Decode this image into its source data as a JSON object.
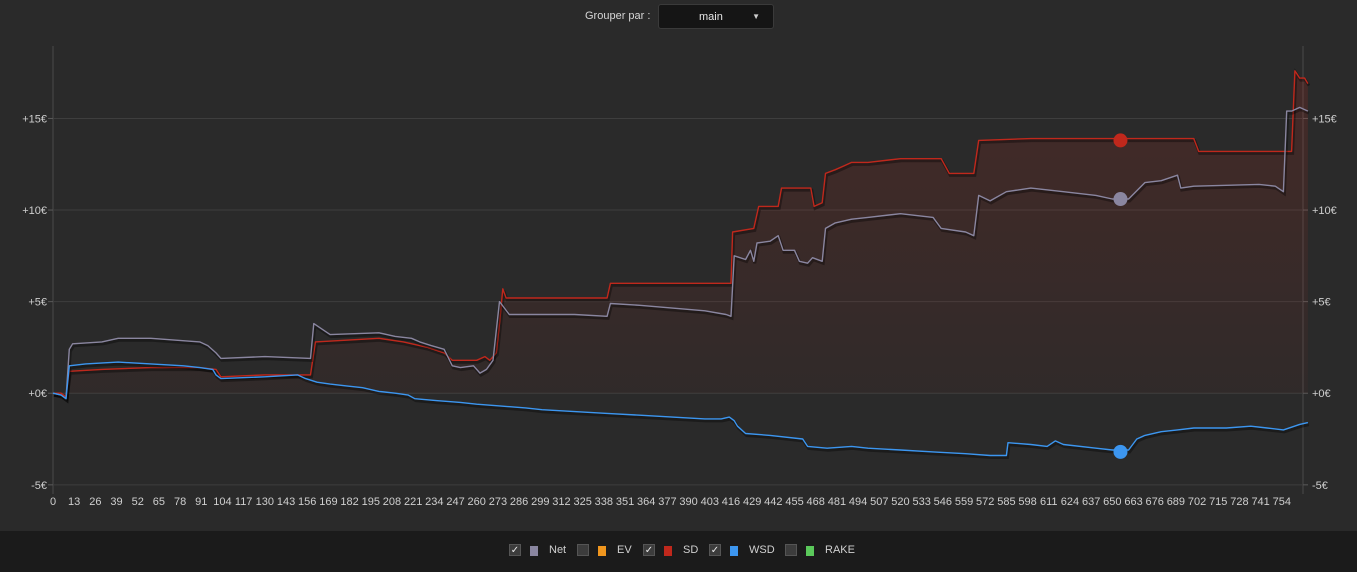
{
  "toolbar": {
    "group_label": "Grouper par :",
    "group_value": "main"
  },
  "colors": {
    "net": "#8a86a0",
    "ev": "#f0961e",
    "sd": "#c0281c",
    "wsd": "#3c96f0",
    "rake": "#5ac85a"
  },
  "legend": [
    {
      "key": "net",
      "label": "Net",
      "checked": true,
      "color": "#8a86a0"
    },
    {
      "key": "ev",
      "label": "EV",
      "checked": false,
      "color": "#f0961e"
    },
    {
      "key": "sd",
      "label": "SD",
      "checked": true,
      "color": "#c0281c"
    },
    {
      "key": "wsd",
      "label": "WSD",
      "checked": true,
      "color": "#3c96f0"
    },
    {
      "key": "rake",
      "label": "RAKE",
      "checked": false,
      "color": "#5ac85a"
    }
  ],
  "chart_data": {
    "type": "line",
    "title": "",
    "xlabel": "",
    "ylabel": "",
    "xlim": [
      0,
      767
    ],
    "ylim": [
      -5.5,
      19.5
    ],
    "grid": true,
    "x_ticks": [
      "0",
      "13",
      "26",
      "39",
      "52",
      "65",
      "78",
      "91",
      "104",
      "117",
      "130",
      "143",
      "156",
      "169",
      "182",
      "195",
      "208",
      "221",
      "234",
      "247",
      "260",
      "273",
      "286",
      "299",
      "312",
      "325",
      "338",
      "351",
      "364",
      "377",
      "390",
      "403",
      "416",
      "429",
      "442",
      "455",
      "468",
      "481",
      "494",
      "507",
      "520",
      "533",
      "546",
      "559",
      "572",
      "585",
      "598",
      "611",
      "624",
      "637",
      "650",
      "663",
      "676",
      "689",
      "702",
      "715",
      "728",
      "741",
      "754"
    ],
    "y_ticks": [
      {
        "value": -5,
        "label": "-5€"
      },
      {
        "value": 0,
        "label": "+0€"
      },
      {
        "value": 5,
        "label": "+5€"
      },
      {
        "value": 10,
        "label": "+10€"
      },
      {
        "value": 15,
        "label": "+15€"
      }
    ],
    "series": [
      {
        "key": "sd",
        "name": "SD",
        "color": "#c0281c",
        "marker": {
          "x": 655,
          "y": 13.8
        },
        "points": [
          [
            0,
            0
          ],
          [
            5,
            0
          ],
          [
            8,
            -0.2
          ],
          [
            10,
            1.2
          ],
          [
            30,
            1.3
          ],
          [
            60,
            1.4
          ],
          [
            90,
            1.4
          ],
          [
            100,
            1.3
          ],
          [
            103,
            0.9
          ],
          [
            130,
            1.0
          ],
          [
            158,
            1.0
          ],
          [
            161,
            2.8
          ],
          [
            200,
            3.0
          ],
          [
            215,
            2.8
          ],
          [
            230,
            2.5
          ],
          [
            240,
            2.2
          ],
          [
            245,
            1.8
          ],
          [
            260,
            1.8
          ],
          [
            265,
            2.0
          ],
          [
            268,
            1.8
          ],
          [
            272,
            2.2
          ],
          [
            274,
            3.8
          ],
          [
            276,
            5.7
          ],
          [
            278,
            5.2
          ],
          [
            300,
            5.2
          ],
          [
            340,
            5.2
          ],
          [
            342,
            6.0
          ],
          [
            390,
            6.0
          ],
          [
            416,
            6.0
          ],
          [
            417,
            8.8
          ],
          [
            430,
            9.0
          ],
          [
            433,
            10.2
          ],
          [
            445,
            10.2
          ],
          [
            447,
            11.2
          ],
          [
            465,
            11.2
          ],
          [
            467,
            10.2
          ],
          [
            472,
            10.4
          ],
          [
            474,
            12.0
          ],
          [
            480,
            12.2
          ],
          [
            485,
            12.4
          ],
          [
            490,
            12.6
          ],
          [
            500,
            12.6
          ],
          [
            520,
            12.8
          ],
          [
            545,
            12.8
          ],
          [
            550,
            12.0
          ],
          [
            565,
            12.0
          ],
          [
            568,
            13.8
          ],
          [
            600,
            13.9
          ],
          [
            640,
            13.9
          ],
          [
            700,
            13.9
          ],
          [
            703,
            13.2
          ],
          [
            760,
            13.2
          ],
          [
            762,
            17.6
          ],
          [
            765,
            17.2
          ],
          [
            768,
            17.2
          ],
          [
            770,
            16.9
          ]
        ]
      },
      {
        "key": "net",
        "name": "Net",
        "color": "#8a86a0",
        "marker": {
          "x": 655,
          "y": 10.6
        },
        "points": [
          [
            0,
            0
          ],
          [
            5,
            -0.1
          ],
          [
            8,
            -0.3
          ],
          [
            10,
            2.4
          ],
          [
            12,
            2.7
          ],
          [
            30,
            2.8
          ],
          [
            40,
            3.0
          ],
          [
            60,
            3.0
          ],
          [
            90,
            2.8
          ],
          [
            95,
            2.6
          ],
          [
            100,
            2.2
          ],
          [
            103,
            1.9
          ],
          [
            130,
            2.0
          ],
          [
            158,
            1.9
          ],
          [
            160,
            3.8
          ],
          [
            165,
            3.5
          ],
          [
            170,
            3.2
          ],
          [
            200,
            3.3
          ],
          [
            210,
            3.1
          ],
          [
            220,
            3.0
          ],
          [
            225,
            2.8
          ],
          [
            232,
            2.6
          ],
          [
            240,
            2.4
          ],
          [
            245,
            1.5
          ],
          [
            250,
            1.4
          ],
          [
            258,
            1.5
          ],
          [
            262,
            1.1
          ],
          [
            266,
            1.3
          ],
          [
            270,
            1.8
          ],
          [
            274,
            5.0
          ],
          [
            280,
            4.3
          ],
          [
            300,
            4.3
          ],
          [
            320,
            4.3
          ],
          [
            340,
            4.2
          ],
          [
            342,
            4.9
          ],
          [
            360,
            4.8
          ],
          [
            400,
            4.5
          ],
          [
            413,
            4.3
          ],
          [
            416,
            4.2
          ],
          [
            418,
            7.5
          ],
          [
            425,
            7.3
          ],
          [
            428,
            7.8
          ],
          [
            430,
            7.2
          ],
          [
            432,
            8.2
          ],
          [
            440,
            8.3
          ],
          [
            445,
            8.6
          ],
          [
            448,
            7.8
          ],
          [
            455,
            7.8
          ],
          [
            458,
            7.2
          ],
          [
            463,
            7.1
          ],
          [
            466,
            7.4
          ],
          [
            472,
            7.2
          ],
          [
            474,
            9.0
          ],
          [
            480,
            9.3
          ],
          [
            490,
            9.5
          ],
          [
            500,
            9.6
          ],
          [
            520,
            9.8
          ],
          [
            540,
            9.6
          ],
          [
            545,
            9.0
          ],
          [
            560,
            8.8
          ],
          [
            565,
            8.6
          ],
          [
            568,
            10.8
          ],
          [
            575,
            10.5
          ],
          [
            585,
            11.0
          ],
          [
            600,
            11.2
          ],
          [
            620,
            11.0
          ],
          [
            640,
            10.8
          ],
          [
            650,
            10.6
          ],
          [
            660,
            10.6
          ],
          [
            670,
            11.5
          ],
          [
            680,
            11.6
          ],
          [
            690,
            11.9
          ],
          [
            692,
            11.2
          ],
          [
            700,
            11.3
          ],
          [
            740,
            11.4
          ],
          [
            750,
            11.3
          ],
          [
            755,
            11.0
          ],
          [
            757,
            15.4
          ],
          [
            760,
            15.4
          ],
          [
            765,
            15.6
          ],
          [
            770,
            15.4
          ]
        ]
      },
      {
        "key": "wsd",
        "name": "WSD",
        "color": "#3c96f0",
        "marker": {
          "x": 655,
          "y": -3.2
        },
        "points": [
          [
            0,
            0
          ],
          [
            5,
            -0.1
          ],
          [
            8,
            -0.3
          ],
          [
            10,
            1.5
          ],
          [
            20,
            1.6
          ],
          [
            40,
            1.7
          ],
          [
            60,
            1.6
          ],
          [
            80,
            1.5
          ],
          [
            90,
            1.4
          ],
          [
            98,
            1.3
          ],
          [
            100,
            1.0
          ],
          [
            103,
            0.8
          ],
          [
            130,
            0.9
          ],
          [
            150,
            1.0
          ],
          [
            155,
            0.8
          ],
          [
            162,
            0.6
          ],
          [
            170,
            0.5
          ],
          [
            180,
            0.4
          ],
          [
            190,
            0.3
          ],
          [
            200,
            0.1
          ],
          [
            210,
            0.0
          ],
          [
            218,
            -0.1
          ],
          [
            222,
            -0.3
          ],
          [
            235,
            -0.4
          ],
          [
            250,
            -0.5
          ],
          [
            260,
            -0.6
          ],
          [
            275,
            -0.7
          ],
          [
            290,
            -0.8
          ],
          [
            300,
            -0.9
          ],
          [
            320,
            -1.0
          ],
          [
            340,
            -1.1
          ],
          [
            360,
            -1.2
          ],
          [
            380,
            -1.3
          ],
          [
            400,
            -1.4
          ],
          [
            410,
            -1.4
          ],
          [
            415,
            -1.3
          ],
          [
            418,
            -1.5
          ],
          [
            420,
            -1.8
          ],
          [
            425,
            -2.2
          ],
          [
            440,
            -2.3
          ],
          [
            460,
            -2.5
          ],
          [
            463,
            -2.9
          ],
          [
            475,
            -3.0
          ],
          [
            490,
            -2.9
          ],
          [
            500,
            -3.0
          ],
          [
            520,
            -3.1
          ],
          [
            540,
            -3.2
          ],
          [
            560,
            -3.3
          ],
          [
            575,
            -3.4
          ],
          [
            585,
            -3.4
          ],
          [
            586,
            -2.7
          ],
          [
            600,
            -2.8
          ],
          [
            610,
            -2.9
          ],
          [
            615,
            -2.6
          ],
          [
            620,
            -2.8
          ],
          [
            640,
            -3.0
          ],
          [
            650,
            -3.1
          ],
          [
            660,
            -3.1
          ],
          [
            665,
            -2.5
          ],
          [
            670,
            -2.3
          ],
          [
            680,
            -2.1
          ],
          [
            690,
            -2.0
          ],
          [
            700,
            -1.9
          ],
          [
            720,
            -1.9
          ],
          [
            735,
            -1.8
          ],
          [
            745,
            -1.9
          ],
          [
            755,
            -2.0
          ],
          [
            765,
            -1.7
          ],
          [
            770,
            -1.6
          ]
        ]
      }
    ]
  }
}
